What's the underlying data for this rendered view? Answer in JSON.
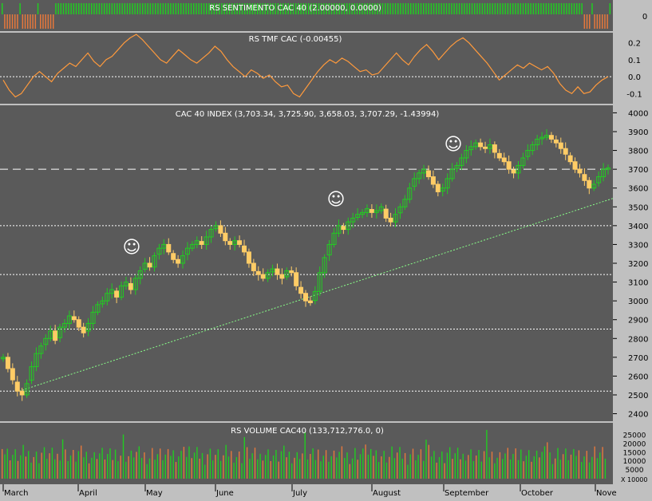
{
  "colors": {
    "panel_bg": "#5a5a5a",
    "frame_bg": "#c0c0c0",
    "up": "#22cc22",
    "down": "#ffcc66",
    "orange": "#e6783c",
    "tmf_line": "#ff9a3c",
    "trend": "#88ff88",
    "text": "#ffffff",
    "axis_text": "#000000"
  },
  "chart_data": [
    {
      "type": "bar",
      "title": "RS SENTIMENTO CAC 40 (2.00000, 0.0000)",
      "ylabel": "",
      "yticks": [
        "0"
      ],
      "ylim": [
        -1,
        1
      ]
    },
    {
      "type": "line",
      "title": "RS TMF CAC (-0.00455)",
      "yticks": [
        "0.2",
        "0.1",
        "0.0",
        "-0.1"
      ],
      "ylim": [
        -0.16,
        0.26
      ],
      "zero_line": 0,
      "series": [
        {
          "values": [
            -0.02,
            -0.08,
            -0.12,
            -0.1,
            -0.05,
            0.0,
            0.03,
            0.0,
            -0.03,
            0.02,
            0.05,
            0.08,
            0.06,
            0.1,
            0.14,
            0.09,
            0.06,
            0.1,
            0.12,
            0.16,
            0.2,
            0.23,
            0.25,
            0.22,
            0.18,
            0.14,
            0.1,
            0.08,
            0.12,
            0.16,
            0.13,
            0.1,
            0.08,
            0.11,
            0.14,
            0.18,
            0.15,
            0.1,
            0.06,
            0.03,
            0.0,
            0.04,
            0.02,
            -0.01,
            0.01,
            -0.03,
            -0.06,
            -0.05,
            -0.1,
            -0.12,
            -0.07,
            -0.02,
            0.03,
            0.07,
            0.1,
            0.08,
            0.11,
            0.09,
            0.06,
            0.03,
            0.04,
            0.01,
            0.02,
            0.06,
            0.1,
            0.14,
            0.1,
            0.07,
            0.12,
            0.16,
            0.19,
            0.15,
            0.1,
            0.14,
            0.18,
            0.21,
            0.23,
            0.2,
            0.16,
            0.12,
            0.08,
            0.03,
            -0.02,
            0.01,
            0.04,
            0.07,
            0.05,
            0.08,
            0.06,
            0.04,
            0.06,
            0.02,
            -0.04,
            -0.08,
            -0.1,
            -0.06,
            -0.1,
            -0.09,
            -0.05,
            -0.02,
            0.0
          ]
        }
      ]
    },
    {
      "type": "candlestick",
      "title": "CAC 40 INDEX (3,703.34, 3,725.90, 3,658.03, 3,707.29, -1.43994)",
      "yticks": [
        "4000",
        "3900",
        "3800",
        "3700",
        "3600",
        "3500",
        "3400",
        "3300",
        "3200",
        "3100",
        "3000",
        "2900",
        "2800",
        "2700",
        "2600",
        "2500",
        "2400"
      ],
      "ylim": [
        2360,
        4040
      ],
      "h_lines_dotted": [
        3400,
        3140,
        2850,
        2520
      ],
      "h_line_dashed": 3700,
      "trendline": {
        "from": [
          0,
          2520
        ],
        "to": [
          139,
          3545
        ]
      },
      "closes": [
        2700,
        2640,
        2580,
        2520,
        2500,
        2560,
        2650,
        2720,
        2760,
        2800,
        2840,
        2790,
        2860,
        2880,
        2920,
        2900,
        2860,
        2830,
        2880,
        2940,
        2980,
        3000,
        3040,
        3060,
        3020,
        3080,
        3100,
        3060,
        3120,
        3160,
        3200,
        3180,
        3240,
        3280,
        3300,
        3260,
        3220,
        3200,
        3240,
        3280,
        3300,
        3320,
        3300,
        3340,
        3380,
        3400,
        3360,
        3320,
        3300,
        3320,
        3300,
        3260,
        3200,
        3160,
        3140,
        3120,
        3150,
        3170,
        3140,
        3120,
        3160,
        3150,
        3080,
        3040,
        3000,
        2990,
        3050,
        3150,
        3230,
        3300,
        3360,
        3400,
        3380,
        3420,
        3440,
        3460,
        3470,
        3490,
        3470,
        3480,
        3500,
        3440,
        3420,
        3460,
        3500,
        3540,
        3600,
        3650,
        3680,
        3700,
        3660,
        3620,
        3580,
        3600,
        3650,
        3700,
        3720,
        3760,
        3800,
        3820,
        3840,
        3820,
        3810,
        3830,
        3790,
        3760,
        3740,
        3700,
        3680,
        3720,
        3760,
        3800,
        3830,
        3860,
        3870,
        3880,
        3860,
        3840,
        3810,
        3780,
        3740,
        3700,
        3680,
        3640,
        3600,
        3620,
        3660,
        3700,
        3707
      ]
    },
    {
      "type": "bar",
      "title": "RS VOLUME CAC40 (133,712,776.0, 0)",
      "yticks": [
        "25000",
        "20000",
        "15000",
        "10000",
        "5000",
        "0"
      ],
      "ylim": [
        0,
        27500
      ],
      "scale_note": "X 10000",
      "x_labels": [
        "March",
        "April",
        "May",
        "June",
        "July",
        "August",
        "September",
        "October",
        "Nove"
      ]
    }
  ],
  "smileys": [
    "☺",
    "☺",
    "☺"
  ]
}
